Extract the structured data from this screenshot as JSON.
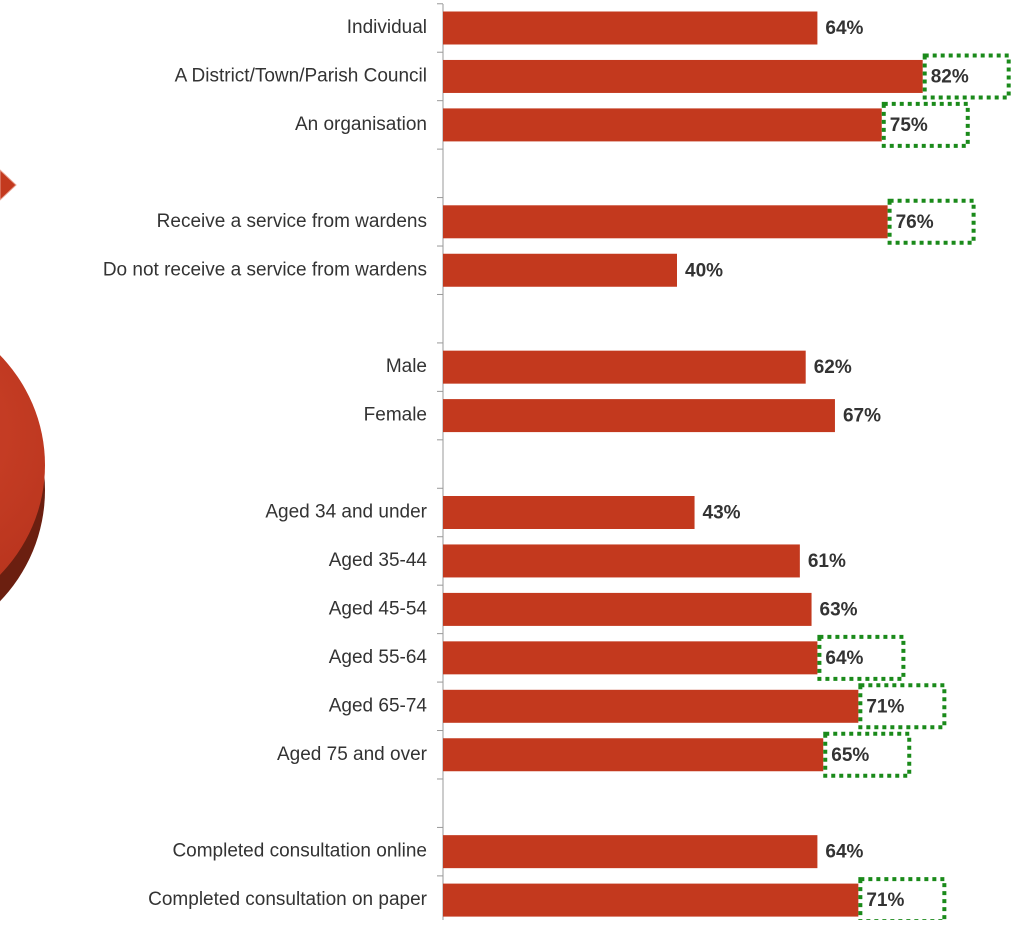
{
  "chart_data": {
    "type": "bar",
    "orientation": "horizontal",
    "categories": [
      "Individual",
      "A District/Town/Parish Council",
      "An organisation",
      null,
      "Receive a service from wardens",
      "Do not receive a service from wardens",
      null,
      "Male",
      "Female",
      null,
      "Aged 34 and under",
      "Aged 35-44",
      "Aged 45-54",
      "Aged 55-64",
      "Aged 65-74",
      "Aged 75 and over",
      null,
      "Completed consultation online",
      "Completed consultation on paper"
    ],
    "values": [
      64,
      82,
      75,
      null,
      76,
      40,
      null,
      62,
      67,
      null,
      43,
      61,
      63,
      64,
      71,
      65,
      null,
      64,
      71
    ],
    "value_labels": [
      "64%",
      "82%",
      "75%",
      null,
      "76%",
      "40%",
      null,
      "62%",
      "67%",
      null,
      "43%",
      "61%",
      "63%",
      "64%",
      "71%",
      "65%",
      null,
      "64%",
      "71%"
    ],
    "highlighted": [
      false,
      true,
      true,
      null,
      true,
      false,
      null,
      false,
      false,
      null,
      false,
      false,
      false,
      true,
      true,
      true,
      null,
      false,
      true
    ],
    "highlight_color": "#1a8a1a",
    "color": "#c3391e",
    "xlim": [
      0,
      100
    ]
  }
}
